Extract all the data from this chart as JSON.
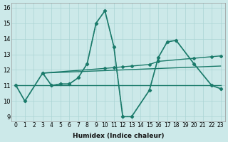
{
  "xlabel": "Humidex (Indice chaleur)",
  "background_color": "#cce9e9",
  "grid_color": "#aad4d4",
  "line_color": "#1a7a6a",
  "x_ticks": [
    0,
    1,
    2,
    3,
    4,
    5,
    6,
    7,
    8,
    9,
    10,
    11,
    12,
    13,
    14,
    15,
    16,
    17,
    18,
    19,
    20,
    21,
    22,
    23
  ],
  "yticks": [
    9,
    10,
    11,
    12,
    13,
    14,
    15,
    16
  ],
  "xlim": [
    -0.5,
    23.5
  ],
  "ylim": [
    8.7,
    16.3
  ],
  "line1": {
    "x": [
      0,
      1,
      3,
      4,
      5,
      6,
      7,
      8,
      9,
      10,
      11,
      12,
      13,
      15,
      16,
      17,
      18,
      20,
      22,
      23
    ],
    "y": [
      11.0,
      10.0,
      11.8,
      11.0,
      11.1,
      11.1,
      11.5,
      12.4,
      15.0,
      15.8,
      13.5,
      9.0,
      9.0,
      10.7,
      12.8,
      13.8,
      13.9,
      12.4,
      11.0,
      10.8
    ]
  },
  "line2": {
    "x": [
      0,
      1,
      3,
      4,
      5,
      6,
      7,
      8,
      9,
      10,
      11,
      12,
      13,
      15,
      16,
      17,
      18,
      20,
      22,
      23
    ],
    "y": [
      11.0,
      10.0,
      11.8,
      11.0,
      11.1,
      11.1,
      11.5,
      12.4,
      15.0,
      15.8,
      13.5,
      9.0,
      9.0,
      10.7,
      12.8,
      13.8,
      13.9,
      12.4,
      11.0,
      10.8
    ]
  },
  "line3_flat": {
    "x": [
      0,
      23
    ],
    "y": [
      11.0,
      11.0
    ]
  },
  "line4_slope1": {
    "x": [
      3,
      23
    ],
    "y": [
      11.8,
      12.25
    ]
  },
  "line5_slope2": {
    "x": [
      3,
      10,
      11,
      12,
      13,
      15,
      16,
      20,
      22,
      23
    ],
    "y": [
      11.8,
      12.1,
      12.15,
      12.2,
      12.25,
      12.35,
      12.55,
      12.75,
      12.85,
      12.9
    ]
  }
}
